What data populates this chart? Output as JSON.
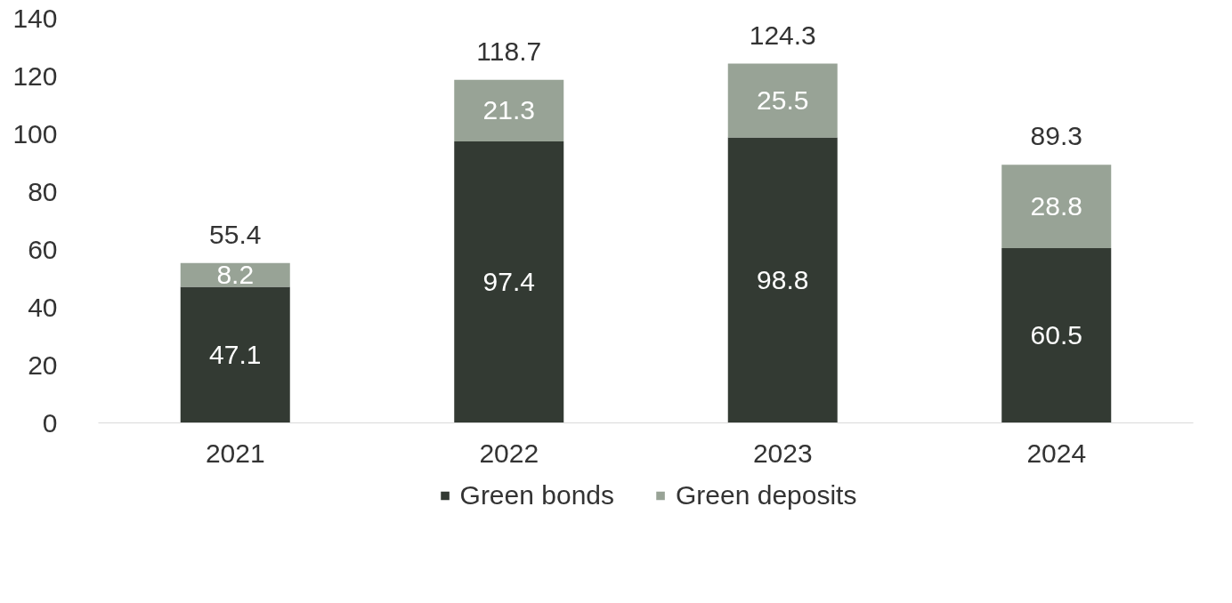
{
  "chart_data": {
    "type": "bar",
    "stacked": true,
    "categories": [
      "2021",
      "2022",
      "2023",
      "2024"
    ],
    "series": [
      {
        "name": "Green bonds",
        "color": "#333a33",
        "values": [
          47.1,
          97.4,
          98.8,
          60.5
        ]
      },
      {
        "name": "Green deposits",
        "color": "#98a396",
        "values": [
          8.2,
          21.3,
          25.5,
          28.8
        ]
      }
    ],
    "totals": [
      "55.4",
      "118.7",
      "124.3",
      "89.3"
    ],
    "data_labels": true,
    "ylim": [
      0,
      140
    ],
    "yticks": [
      0,
      20,
      40,
      60,
      80,
      100,
      120,
      140
    ],
    "grid": false,
    "legend": "bottom"
  }
}
